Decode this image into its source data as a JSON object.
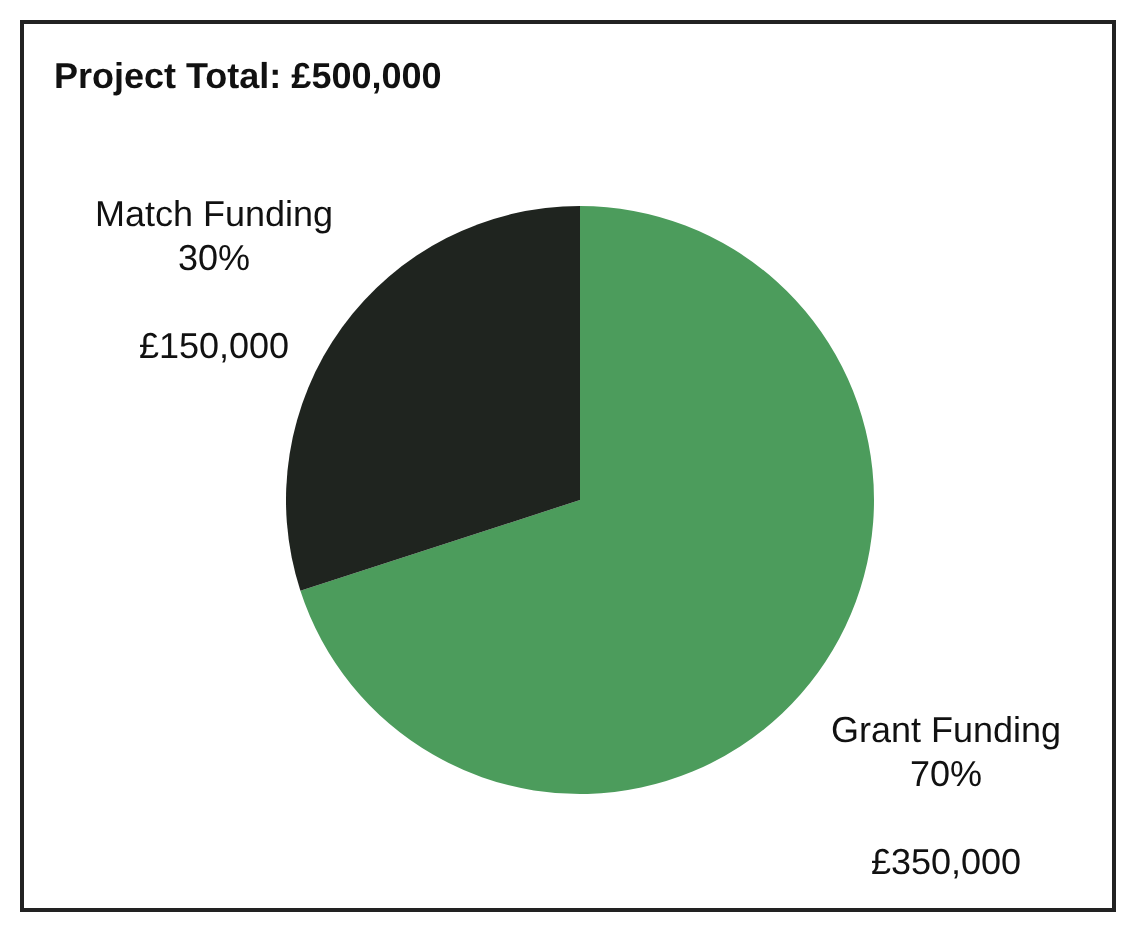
{
  "chart_data": {
    "type": "pie",
    "title": "Project Total: £500,000",
    "categories": [
      "Grant Funding",
      "Match Funding"
    ],
    "values": [
      70,
      30
    ],
    "value_labels": [
      "70%\n\n£350,000",
      "30%\n\n£150,000"
    ],
    "colors": [
      "#4c9c5c",
      "#1f241f"
    ],
    "legend": false
  }
}
